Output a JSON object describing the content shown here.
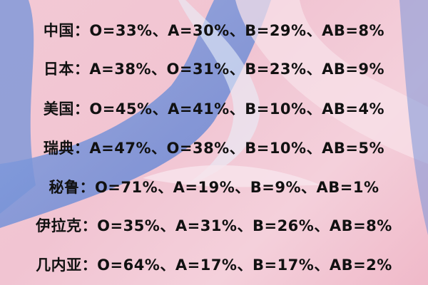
{
  "rows": [
    {
      "text": "中国：O=33%、A=30%、B=29%、AB=8%"
    },
    {
      "text": "日本：A=38%、O=31%、B=23%、AB=9%"
    },
    {
      "text": "美国：O=45%、A=41%、B=10%、AB=4%"
    },
    {
      "text": "瑞典：A=47%、O=38%、B=10%、AB=5%"
    },
    {
      "text": "秘鲁：O=71%、A=19%、B=9%、AB=1%"
    },
    {
      "text": "伊拉克：O=35%、A=31%、B=26%、AB=8%"
    },
    {
      "text": "几内亚：O=64%、A=17%、B=17%、AB=2%"
    }
  ],
  "colors": {
    "background": "#f3c9d4",
    "hands": "#6f8fd6",
    "text": "#111111"
  }
}
